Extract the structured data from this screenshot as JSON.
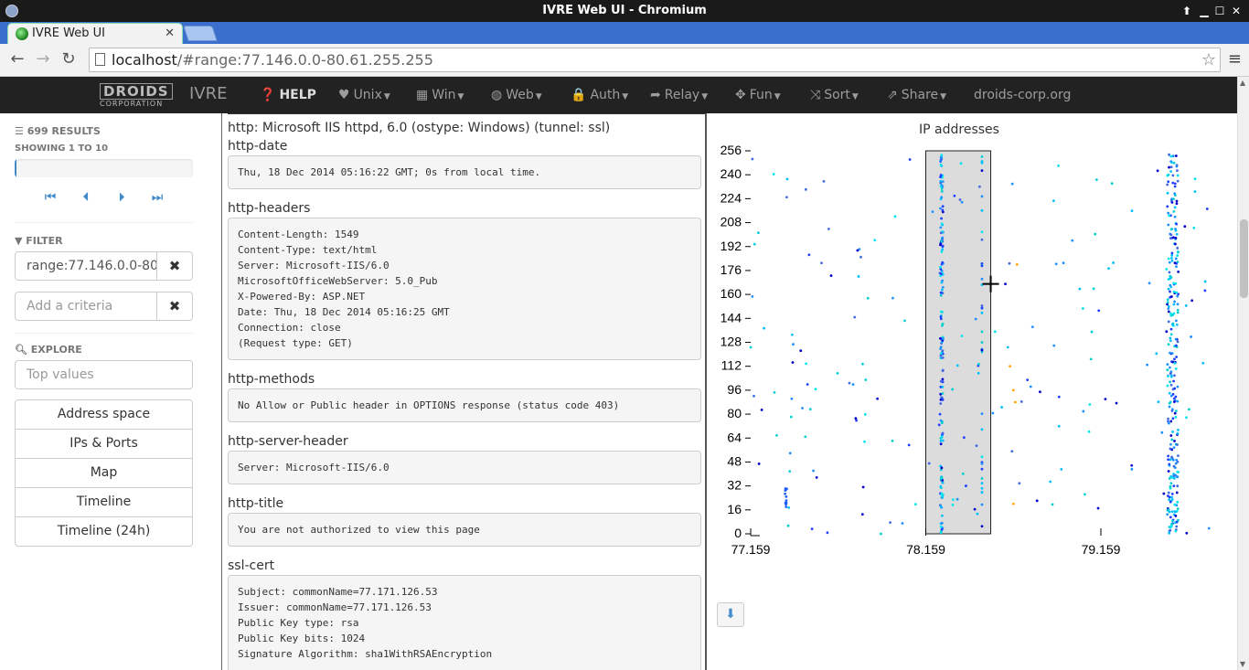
{
  "window": {
    "title": "IVRE Web UI - Chromium"
  },
  "browser": {
    "tab_title": "IVRE Web UI",
    "url_host": "localhost",
    "url_path": "/#range:77.146.0.0-80.61.255.255"
  },
  "appbar": {
    "brand_line1": "DROIDS",
    "brand_line2": "CORPORATION",
    "name": "IVRE",
    "items": {
      "help": "HELP",
      "unix": "Unix",
      "win": "Win",
      "web": "Web",
      "auth": "Auth",
      "relay": "Relay",
      "fun": "Fun",
      "sort": "Sort",
      "share": "Share",
      "site": "droids-corp.org"
    }
  },
  "sidebar": {
    "results": "699 RESULTS",
    "showing": "SHOWING 1 TO 10",
    "progress_fraction": 0.01,
    "filter_title": "FILTER",
    "filter_value": "range:77.146.0.0-80.",
    "criteria_placeholder": "Add a criteria",
    "explore_title": "EXPLORE",
    "top_values_placeholder": "Top values",
    "explore_buttons": [
      "Address space",
      "IPs & Ports",
      "Map",
      "Timeline",
      "Timeline (24h)"
    ]
  },
  "details": {
    "service": "http: Microsoft IIS httpd, 6.0 (ostype: Windows) (tunnel: ssl)",
    "scripts": [
      {
        "name": "http-date",
        "output": "Thu, 18 Dec 2014 05:16:22 GMT; 0s from local time."
      },
      {
        "name": "http-headers",
        "output": "Content-Length: 1549\nContent-Type: text/html\nServer: Microsoft-IIS/6.0\nMicrosoftOfficeWebServer: 5.0_Pub\nX-Powered-By: ASP.NET\nDate: Thu, 18 Dec 2014 05:16:25 GMT\nConnection: close\n(Request type: GET)"
      },
      {
        "name": "http-methods",
        "output": "No Allow or Public header in OPTIONS response (status code 403)"
      },
      {
        "name": "http-server-header",
        "output": "Server: Microsoft-IIS/6.0"
      },
      {
        "name": "http-title",
        "output": "You are not authorized to view this page"
      },
      {
        "name": "ssl-cert",
        "output": "Subject: commonName=77.171.126.53\nIssuer: commonName=77.171.126.53\nPublic Key type: rsa\nPublic Key bits: 1024\nSignature Algorithm: sha1WithRSAEncryption"
      }
    ]
  },
  "chart": {
    "title": "IP addresses"
  },
  "chart_data": {
    "type": "scatter",
    "title": "IP addresses",
    "x_ticks": [
      "77.159",
      "78.159",
      "79.159"
    ],
    "y_ticks": [
      "0",
      "16",
      "32",
      "48",
      "64",
      "80",
      "96",
      "112",
      "128",
      "144",
      "160",
      "176",
      "192",
      "208",
      "224",
      "240",
      "256"
    ],
    "xlim": [
      77.159,
      79.78
    ],
    "ylim": [
      0,
      256
    ],
    "selection_x": [
      78.159,
      78.53
    ]
  }
}
